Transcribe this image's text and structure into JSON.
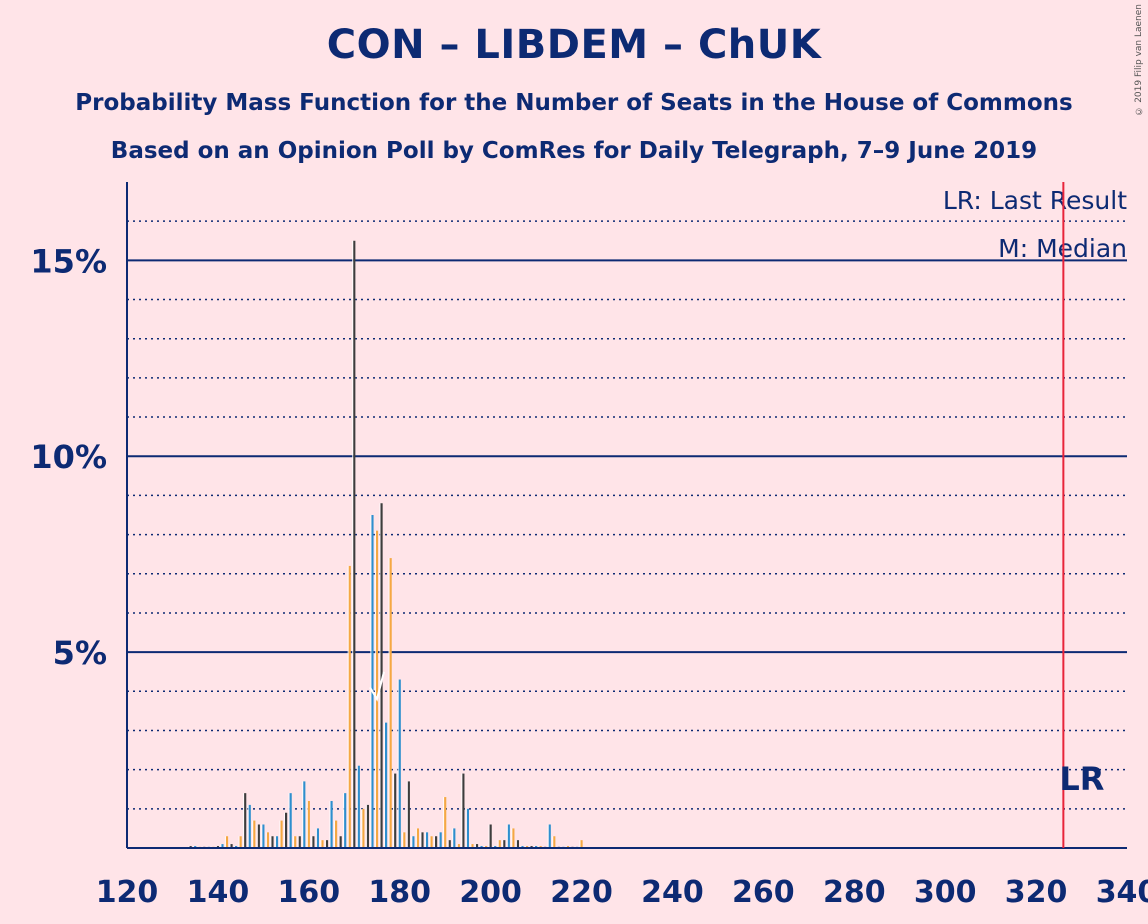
{
  "title": "CON – LIBDEM – ChUK",
  "subtitle1": "Probability Mass Function for the Number of Seats in the House of Commons",
  "subtitle2": "Based on an Opinion Poll by ComRes for Daily Telegraph, 7–9 June 2019",
  "copyright": "© 2019 Filip van Laenen",
  "legend": {
    "lr": "LR: Last Result",
    "m": "M: Median"
  },
  "lr_marker": "LR",
  "colors": {
    "background": "#FFE4E8",
    "axis": "#0D2A73",
    "lr_line": "#E8243A",
    "bar_dark": "#3D3D3D",
    "bar_blue": "#2E8FCE",
    "bar_orange": "#F5A843",
    "median": "#FFFFFF"
  },
  "chart_data": {
    "type": "bar",
    "xlim": [
      120,
      340
    ],
    "ylim": [
      0,
      17
    ],
    "y_unit": "%",
    "x_ticks": [
      120,
      140,
      160,
      180,
      200,
      220,
      240,
      260,
      280,
      300,
      320,
      340
    ],
    "y_ticks_labeled": [
      {
        "value": 5,
        "label": "5%"
      },
      {
        "value": 10,
        "label": "10%"
      },
      {
        "value": 15,
        "label": "15%"
      }
    ],
    "y_gridlines_major": [
      5,
      10,
      15
    ],
    "y_gridlines_minor": [
      1,
      2,
      3,
      4,
      6,
      7,
      8,
      9,
      11,
      12,
      13,
      14,
      16
    ],
    "last_result": 326,
    "median": 175,
    "series": [
      {
        "color": "dark",
        "values": [
          [
            134,
            0.05
          ],
          [
            137,
            0.03
          ],
          [
            140,
            0.05
          ],
          [
            143,
            0.1
          ],
          [
            146,
            1.4
          ],
          [
            149,
            0.6
          ],
          [
            152,
            0.3
          ],
          [
            155,
            0.9
          ],
          [
            158,
            0.3
          ],
          [
            161,
            0.3
          ],
          [
            164,
            0.2
          ],
          [
            167,
            0.3
          ],
          [
            170,
            15.5
          ],
          [
            173,
            1.1
          ],
          [
            176,
            8.8
          ],
          [
            179,
            1.9
          ],
          [
            182,
            1.7
          ],
          [
            185,
            0.4
          ],
          [
            188,
            0.3
          ],
          [
            191,
            0.2
          ],
          [
            194,
            1.9
          ],
          [
            197,
            0.1
          ],
          [
            200,
            0.6
          ],
          [
            203,
            0.2
          ],
          [
            206,
            0.2
          ],
          [
            209,
            0.05
          ],
          [
            212,
            0.03
          ],
          [
            215,
            0.03
          ],
          [
            218,
            0.03
          ]
        ]
      },
      {
        "color": "blue",
        "values": [
          [
            135,
            0.05
          ],
          [
            138,
            0.03
          ],
          [
            141,
            0.1
          ],
          [
            144,
            0.05
          ],
          [
            147,
            1.1
          ],
          [
            150,
            0.6
          ],
          [
            153,
            0.3
          ],
          [
            156,
            1.4
          ],
          [
            159,
            1.7
          ],
          [
            162,
            0.5
          ],
          [
            165,
            1.2
          ],
          [
            168,
            1.4
          ],
          [
            171,
            2.1
          ],
          [
            174,
            8.5
          ],
          [
            177,
            3.2
          ],
          [
            180,
            4.3
          ],
          [
            183,
            0.3
          ],
          [
            186,
            0.4
          ],
          [
            189,
            0.4
          ],
          [
            192,
            0.5
          ],
          [
            195,
            1.0
          ],
          [
            198,
            0.05
          ],
          [
            201,
            0.05
          ],
          [
            204,
            0.6
          ],
          [
            207,
            0.05
          ],
          [
            210,
            0.05
          ],
          [
            213,
            0.6
          ],
          [
            216,
            0.03
          ],
          [
            219,
            0.03
          ]
        ]
      },
      {
        "color": "orange",
        "values": [
          [
            136,
            0.03
          ],
          [
            139,
            0.03
          ],
          [
            142,
            0.3
          ],
          [
            145,
            0.3
          ],
          [
            148,
            0.7
          ],
          [
            151,
            0.4
          ],
          [
            154,
            0.7
          ],
          [
            157,
            0.3
          ],
          [
            160,
            1.2
          ],
          [
            163,
            0.2
          ],
          [
            166,
            0.7
          ],
          [
            169,
            7.2
          ],
          [
            172,
            1.0
          ],
          [
            175,
            8.1
          ],
          [
            178,
            7.4
          ],
          [
            181,
            0.4
          ],
          [
            184,
            0.5
          ],
          [
            187,
            0.3
          ],
          [
            190,
            1.3
          ],
          [
            193,
            0.1
          ],
          [
            196,
            0.1
          ],
          [
            199,
            0.05
          ],
          [
            202,
            0.2
          ],
          [
            205,
            0.5
          ],
          [
            208,
            0.05
          ],
          [
            211,
            0.05
          ],
          [
            214,
            0.3
          ],
          [
            217,
            0.05
          ],
          [
            220,
            0.2
          ]
        ]
      }
    ]
  }
}
